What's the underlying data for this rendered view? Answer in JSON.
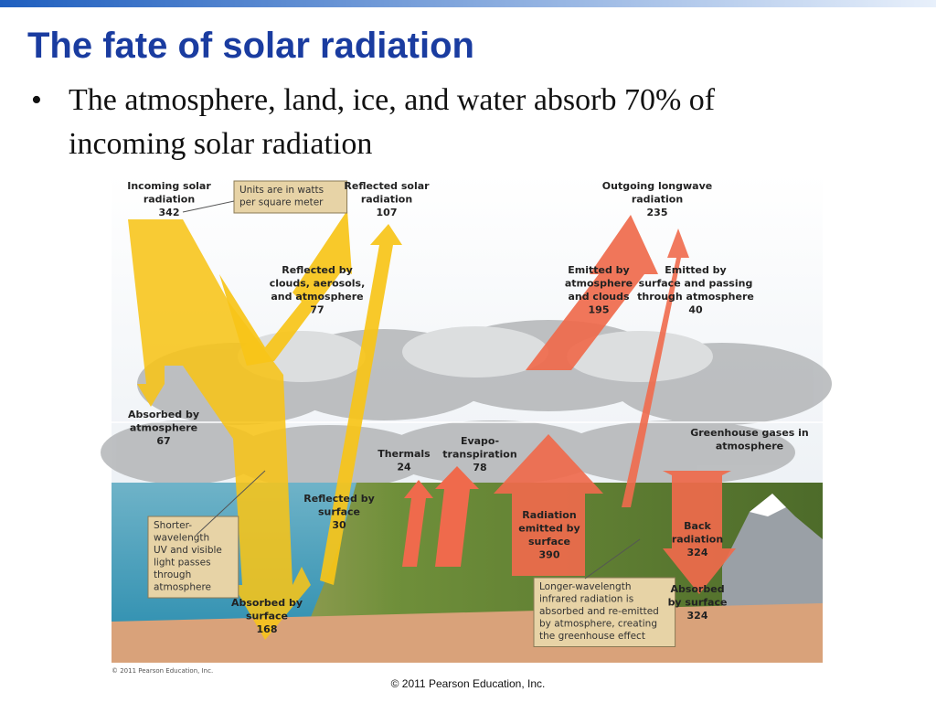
{
  "header": {
    "title": "The fate of solar radiation"
  },
  "bullets": [
    "The atmosphere, land, ice, and water absorb 70% of",
    "incoming solar radiation"
  ],
  "diagram": {
    "labels": [
      {
        "lines": [
          "Incoming solar",
          "radiation"
        ],
        "value": 342
      },
      {
        "lines": [
          "Units are in watts",
          "per square meter"
        ]
      },
      {
        "lines": [
          "Reflected solar",
          "radiation"
        ],
        "value": 107
      },
      {
        "lines": [
          "Outgoing longwave",
          "radiation"
        ],
        "value": 235
      },
      {
        "lines": [
          "Reflected by",
          "clouds, aerosols,",
          "and atmosphere"
        ],
        "value": 77
      },
      {
        "lines": [
          "Emitted by",
          "atmosphere",
          "and clouds"
        ],
        "value": 195
      },
      {
        "lines": [
          "Emitted by",
          "surface and passing",
          "through atmosphere"
        ],
        "value": 40
      },
      {
        "lines": [
          "Absorbed by",
          "atmosphere"
        ],
        "value": 67
      },
      {
        "lines": [
          "Thermals"
        ],
        "value": 24
      },
      {
        "lines": [
          "Evapo-",
          "transpiration"
        ],
        "value": 78
      },
      {
        "lines": [
          "Greenhouse gases in",
          "atmosphere"
        ]
      },
      {
        "lines": [
          "Reflected by",
          "surface"
        ],
        "value": 30
      },
      {
        "lines": [
          "Shorter-",
          "wavelength",
          "UV and visible",
          "light passes",
          "through",
          "atmosphere"
        ]
      },
      {
        "lines": [
          "Radiation",
          "emitted by",
          "surface"
        ],
        "value": 390
      },
      {
        "lines": [
          "Back",
          "radiation"
        ],
        "value": 324
      },
      {
        "lines": [
          "Absorbed by",
          "surface"
        ],
        "value": 168
      },
      {
        "lines": [
          "Longer-wavelength",
          "infrared radiation is",
          "absorbed and re-emitted",
          "by atmosphere, creating",
          "the greenhouse effect"
        ]
      },
      {
        "lines": [
          "Absorbed",
          "by surface"
        ],
        "value": 324
      }
    ],
    "credit": "© 2011 Pearson Education, Inc."
  },
  "footer": "© 2011 Pearson Education, Inc."
}
